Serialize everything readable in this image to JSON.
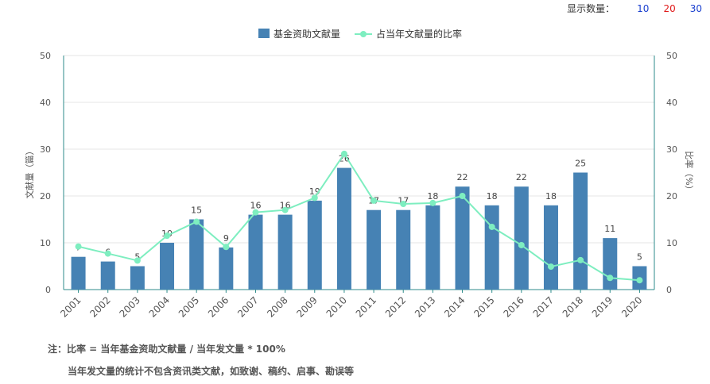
{
  "display_count": {
    "label": "显示数量：",
    "options": [
      "10",
      "20",
      "30"
    ]
  },
  "notes": {
    "line1": "注：比率 = 当年基金资助文献量 / 当年发文量 * 100%",
    "line2": "当年发文量的统计不包含资讯类文献，如致谢、稿约、启事、勘误等"
  },
  "chart_data": {
    "type": "bar",
    "categories": [
      "2001",
      "2002",
      "2003",
      "2004",
      "2005",
      "2006",
      "2007",
      "2008",
      "2009",
      "2010",
      "2011",
      "2012",
      "2013",
      "2014",
      "2015",
      "2016",
      "2017",
      "2018",
      "2019",
      "2020"
    ],
    "series": [
      {
        "name": "基金资助文献量",
        "type": "bar",
        "axis": "left",
        "color": "#4682b4",
        "values": [
          7,
          6,
          5,
          10,
          15,
          9,
          16,
          16,
          19,
          26,
          17,
          17,
          18,
          22,
          18,
          22,
          18,
          25,
          11,
          5
        ]
      },
      {
        "name": "占当年文献量的比率",
        "type": "line",
        "axis": "right",
        "color": "#7eeec0",
        "values": [
          9.2,
          7.7,
          6.2,
          11.5,
          14.5,
          9.1,
          16.5,
          17.0,
          19.6,
          29.0,
          19.0,
          18.3,
          18.5,
          20.0,
          13.4,
          9.5,
          4.9,
          6.3,
          2.5,
          2.0
        ]
      }
    ],
    "ylabel": "文献量（篇）",
    "y2label": "比率（%）",
    "ylim": [
      0,
      50
    ],
    "y2lim": [
      0,
      50
    ],
    "yticks": [
      0,
      10,
      20,
      30,
      40,
      50
    ],
    "grid": true,
    "legend": "top-center"
  }
}
